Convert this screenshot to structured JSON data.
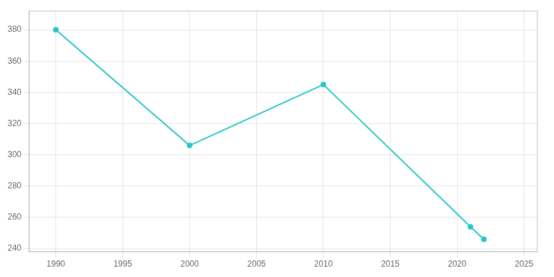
{
  "chart_data": {
    "type": "line",
    "x": [
      1990,
      2000,
      2010,
      2021,
      2022
    ],
    "values": [
      380,
      306,
      345,
      254,
      246
    ],
    "color": "#26c6c6",
    "marker": "circle",
    "xlim": [
      1988,
      2026
    ],
    "ylim": [
      238,
      392
    ],
    "xticks": [
      1990,
      1995,
      2000,
      2005,
      2010,
      2015,
      2020,
      2025
    ],
    "yticks": [
      240,
      260,
      280,
      300,
      320,
      340,
      360,
      380
    ],
    "grid": true
  }
}
